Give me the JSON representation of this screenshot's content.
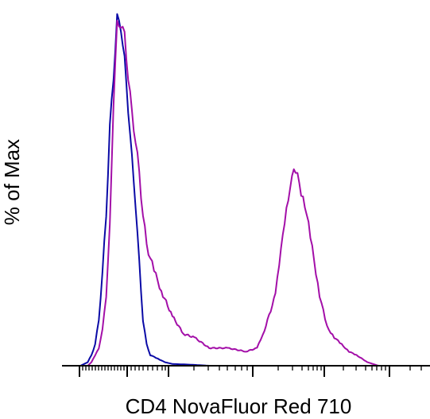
{
  "chart_data": {
    "type": "line",
    "title": "",
    "xlabel": "CD4 NovaFluor Red 710",
    "ylabel": "% of Max",
    "x_scale": "biexponential",
    "x_tick_labels": [],
    "y_tick_labels": [],
    "ylim": [
      0,
      100
    ],
    "grid": false,
    "legend": "none",
    "series": [
      {
        "color": "#0a0aa6",
        "x": [
          0.0,
          0.05,
          0.07,
          0.08,
          0.09,
          0.1,
          0.11,
          0.12,
          0.13,
          0.14,
          0.15,
          0.16,
          0.17,
          0.18,
          0.19,
          0.2,
          0.21,
          0.22,
          0.23,
          0.24,
          0.26,
          0.28,
          0.3,
          0.35,
          0.4,
          1.0
        ],
        "y": [
          0,
          0,
          1,
          3,
          6,
          13,
          26,
          43,
          67,
          82,
          98,
          96,
          86,
          73,
          58,
          46,
          29,
          13,
          6,
          3,
          2,
          1,
          0.5,
          0.3,
          0,
          0
        ]
      },
      {
        "color": "#a30fa8",
        "x": [
          0.0,
          0.07,
          0.08,
          0.1,
          0.11,
          0.12,
          0.13,
          0.14,
          0.15,
          0.16,
          0.17,
          0.18,
          0.19,
          0.2,
          0.21,
          0.22,
          0.23,
          0.25,
          0.27,
          0.3,
          0.33,
          0.36,
          0.4,
          0.45,
          0.5,
          0.53,
          0.55,
          0.58,
          0.6,
          0.62,
          0.63,
          0.64,
          0.66,
          0.68,
          0.7,
          0.72,
          0.74,
          0.76,
          0.78,
          0.8,
          0.83,
          0.86,
          1.0
        ],
        "y": [
          0,
          0,
          1,
          5,
          10,
          20,
          39,
          75,
          96,
          97,
          93,
          82,
          71,
          64,
          54,
          43,
          34,
          27,
          21,
          14,
          9,
          8,
          5,
          5,
          4,
          5,
          10,
          20,
          38,
          49,
          57,
          53,
          46,
          33,
          20,
          11,
          8,
          6,
          4,
          3,
          1,
          0,
          0
        ]
      }
    ]
  }
}
